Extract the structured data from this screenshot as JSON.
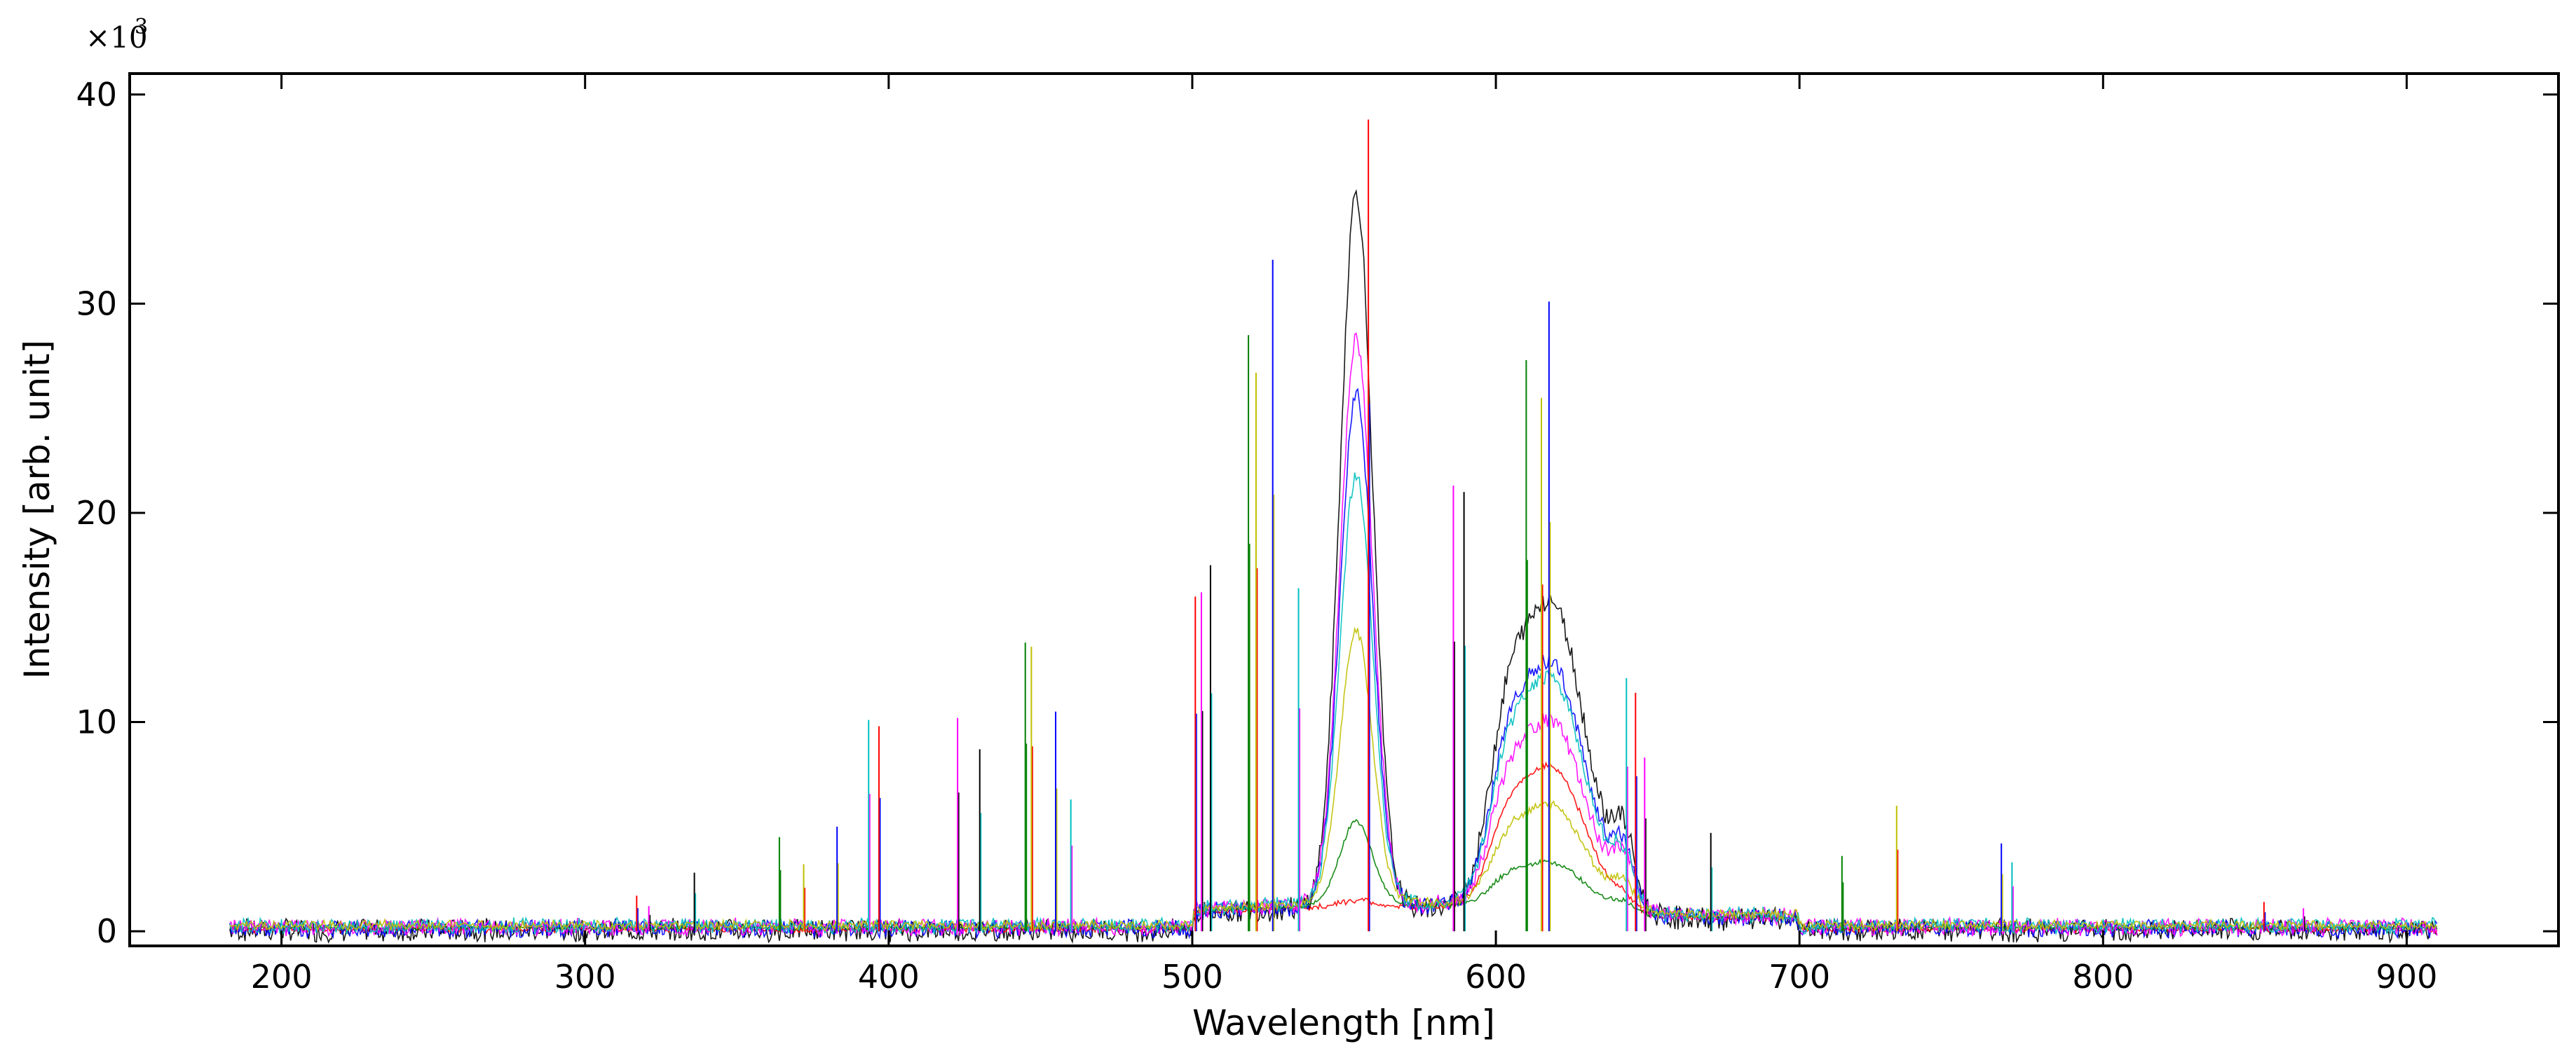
{
  "chart_data": {
    "type": "line",
    "xlabel": "Wavelength [nm]",
    "ylabel": "Intensity [arb. unit]",
    "y_multiplier": "×10",
    "y_multiplier_exponent": "3",
    "xlim": [
      150,
      950
    ],
    "ylim": [
      -0.7,
      41
    ],
    "x_ticks": [
      "200",
      "300",
      "400",
      "500",
      "600",
      "700",
      "800",
      "900"
    ],
    "y_ticks": [
      "0",
      "10",
      "20",
      "30",
      "40"
    ],
    "x_tick_values": [
      200,
      300,
      400,
      500,
      600,
      700,
      800,
      900
    ],
    "y_tick_values": [
      0,
      10,
      20,
      30,
      40
    ],
    "grid": false,
    "legend": "none",
    "series_colors": [
      "#000000",
      "#ff0000",
      "#0000ff",
      "#008000",
      "#ff00ff",
      "#00bfbf",
      "#bfbf00"
    ],
    "broad_peaks": [
      {
        "center": 554,
        "heights": [
          34.2,
          0.3,
          24.5,
          4.0,
          27.0,
          20.5,
          13.0
        ]
      },
      {
        "center": 618,
        "heights": [
          18.2,
          8.5,
          14.5,
          2.8,
          11.0,
          13.5,
          6.0
        ]
      }
    ],
    "x_range": [
      183,
      910
    ],
    "emission_lines": [
      {
        "x": 317,
        "y": 1.7
      },
      {
        "x": 321,
        "y": 1.2
      },
      {
        "x": 336,
        "y": 2.8
      },
      {
        "x": 364,
        "y": 4.5
      },
      {
        "x": 372,
        "y": 3.2
      },
      {
        "x": 383,
        "y": 5.0
      },
      {
        "x": 393.4,
        "y": 10.1
      },
      {
        "x": 396.8,
        "y": 9.8
      },
      {
        "x": 422.7,
        "y": 10.2
      },
      {
        "x": 430,
        "y": 8.7
      },
      {
        "x": 445,
        "y": 13.8
      },
      {
        "x": 447,
        "y": 13.6
      },
      {
        "x": 455,
        "y": 10.5
      },
      {
        "x": 460,
        "y": 6.3
      },
      {
        "x": 501,
        "y": 16.0
      },
      {
        "x": 503,
        "y": 16.2
      },
      {
        "x": 506,
        "y": 17.5
      },
      {
        "x": 518.5,
        "y": 28.5
      },
      {
        "x": 521,
        "y": 26.7
      },
      {
        "x": 526.5,
        "y": 32.1
      },
      {
        "x": 535,
        "y": 16.4
      },
      {
        "x": 558,
        "y": 38.8
      },
      {
        "x": 586,
        "y": 21.3
      },
      {
        "x": 589.5,
        "y": 21.0
      },
      {
        "x": 610,
        "y": 27.3
      },
      {
        "x": 615,
        "y": 25.5
      },
      {
        "x": 617.5,
        "y": 30.1
      },
      {
        "x": 643,
        "y": 12.1
      },
      {
        "x": 646,
        "y": 11.4
      },
      {
        "x": 649,
        "y": 8.3
      },
      {
        "x": 670.8,
        "y": 4.7
      },
      {
        "x": 714,
        "y": 3.6
      },
      {
        "x": 732,
        "y": 6.0
      },
      {
        "x": 766.5,
        "y": 4.2
      },
      {
        "x": 770,
        "y": 3.3
      },
      {
        "x": 853,
        "y": 1.4
      },
      {
        "x": 866,
        "y": 1.1
      }
    ]
  }
}
